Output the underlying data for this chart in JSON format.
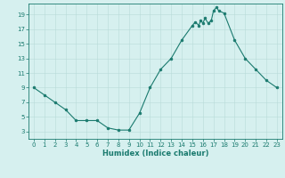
{
  "xlabel": "Humidex (Indice chaleur)",
  "x": [
    0,
    1,
    2,
    3,
    4,
    5,
    6,
    7,
    8,
    9,
    10,
    11,
    12,
    13,
    14,
    15,
    15.3,
    15.6,
    15.8,
    16.0,
    16.2,
    16.5,
    16.8,
    17.0,
    17.3,
    17.5,
    18,
    19,
    20,
    21,
    22,
    23
  ],
  "y": [
    9,
    8,
    7,
    6,
    4.5,
    4.5,
    4.5,
    3.5,
    3.2,
    3.2,
    5.5,
    9,
    11.5,
    13,
    15.5,
    17.5,
    18.0,
    17.5,
    18.2,
    17.8,
    18.5,
    17.8,
    18.2,
    19.5,
    20.0,
    19.5,
    19.2,
    15.5,
    13,
    11.5,
    10,
    9
  ],
  "line_color": "#1a7a6e",
  "marker_color": "#1a7a6e",
  "bg_color": "#d6f0ef",
  "grid_color": "#b8dbd8",
  "tick_color": "#1a7a6e",
  "xlim": [
    -0.5,
    23.5
  ],
  "ylim": [
    2,
    20.5
  ],
  "yticks": [
    3,
    5,
    7,
    9,
    11,
    13,
    15,
    17,
    19
  ],
  "xticks": [
    0,
    1,
    2,
    3,
    4,
    5,
    6,
    7,
    8,
    9,
    10,
    11,
    12,
    13,
    14,
    15,
    16,
    17,
    18,
    19,
    20,
    21,
    22,
    23
  ],
  "xlabel_fontsize": 6.0,
  "tick_fontsize": 5.0,
  "linewidth": 0.8,
  "markersize": 2.0
}
